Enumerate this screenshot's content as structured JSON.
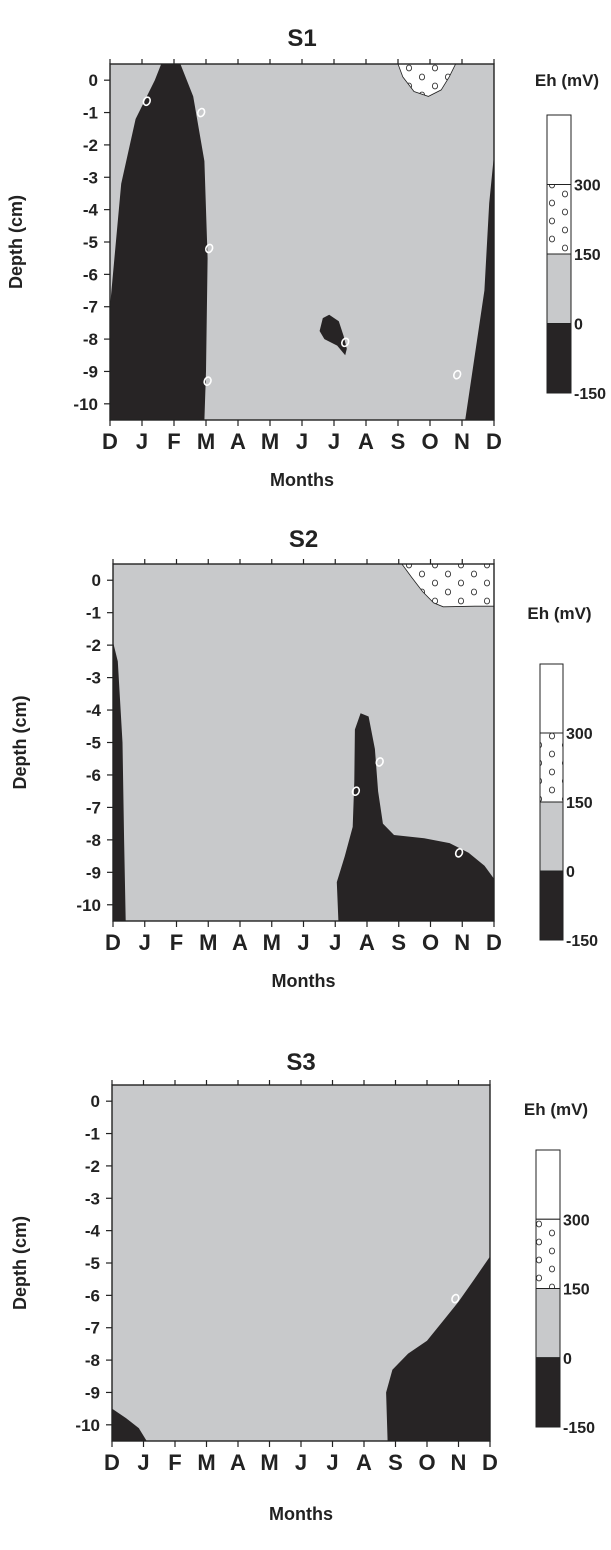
{
  "colors": {
    "anoxic": "#272425",
    "mid": "#c8c9cb",
    "high": "#ffffff",
    "frame": "#222222",
    "contour_label": "#ffffff"
  },
  "chart_data": [
    {
      "type": "contour",
      "title": "S1",
      "xlabel": "Months",
      "ylabel": "Depth  (cm)",
      "x_ticks": [
        "D",
        "J",
        "F",
        "M",
        "A",
        "M",
        "J",
        "J",
        "A",
        "S",
        "O",
        "N",
        "D"
      ],
      "y_ticks": [
        "0",
        "-1",
        "-2",
        "-3",
        "-4",
        "-5",
        "-6",
        "-7",
        "-8",
        "-9",
        "-10"
      ],
      "ylim": [
        -10.5,
        0.5
      ],
      "legend": {
        "title": "Eh  (mV)",
        "levels": [
          "300",
          "150",
          "0",
          "-150"
        ],
        "bands": [
          {
            "range": [
              300,
              450
            ],
            "fill": "white"
          },
          {
            "range": [
              150,
              300
            ],
            "fill": "dotted"
          },
          {
            "range": [
              0,
              150
            ],
            "fill": "gray"
          },
          {
            "range": [
              -150,
              0
            ],
            "fill": "dark"
          }
        ]
      },
      "regions": [
        {
          "eh_class": "-150 to 0",
          "fill": "dark",
          "polygon": [
            [
              0,
              -7
            ],
            [
              0.35,
              -3.2
            ],
            [
              0.8,
              -1.2
            ],
            [
              1.4,
              0
            ],
            [
              1.6,
              0.5
            ],
            [
              2.2,
              0.5
            ],
            [
              2.6,
              -0.5
            ],
            [
              2.95,
              -2.5
            ],
            [
              3.05,
              -5.5
            ],
            [
              3,
              -9
            ],
            [
              2.95,
              -10.5
            ],
            [
              0,
              -10.5
            ]
          ]
        },
        {
          "eh_class": "-150 to 0",
          "fill": "dark",
          "polygon": [
            [
              12,
              -2.3
            ],
            [
              11.85,
              -3.8
            ],
            [
              11.7,
              -6.5
            ],
            [
              11.4,
              -8.5
            ],
            [
              11.1,
              -10.5
            ],
            [
              12,
              -10.5
            ]
          ]
        },
        {
          "eh_class": "-150 to 0",
          "fill": "dark",
          "polygon": [
            [
              6.85,
              -7.25
            ],
            [
              6.65,
              -7.35
            ],
            [
              6.55,
              -7.75
            ],
            [
              6.7,
              -8.0
            ],
            [
              7.1,
              -8.2
            ],
            [
              7.35,
              -8.5
            ],
            [
              7.4,
              -8.3
            ],
            [
              7.3,
              -7.9
            ],
            [
              7.15,
              -7.45
            ]
          ]
        },
        {
          "eh_class": "150 to 300",
          "fill": "dotted",
          "polygon": [
            [
              9.0,
              0.5
            ],
            [
              9.15,
              0.1
            ],
            [
              9.5,
              -0.35
            ],
            [
              9.95,
              -0.5
            ],
            [
              10.35,
              -0.3
            ],
            [
              10.6,
              0.1
            ],
            [
              10.8,
              0.5
            ]
          ]
        }
      ],
      "contour_labels": [
        {
          "x": 1.15,
          "y": -0.65,
          "value": "0"
        },
        {
          "x": 2.85,
          "y": -1.0,
          "value": "0"
        },
        {
          "x": 3.1,
          "y": -5.2,
          "value": "0"
        },
        {
          "x": 3.05,
          "y": -9.3,
          "value": "0"
        },
        {
          "x": 7.35,
          "y": -8.1,
          "value": "0"
        },
        {
          "x": 10.85,
          "y": -9.1,
          "value": "0"
        }
      ]
    },
    {
      "type": "contour",
      "title": "S2",
      "xlabel": "Months",
      "ylabel": "Depth (cm)",
      "x_ticks": [
        "D",
        "J",
        "F",
        "M",
        "A",
        "M",
        "J",
        "J",
        "A",
        "S",
        "O",
        "N",
        "D"
      ],
      "y_ticks": [
        "0",
        "-1",
        "-2",
        "-3",
        "-4",
        "-5",
        "-6",
        "-7",
        "-8",
        "-9",
        "-10"
      ],
      "ylim": [
        -10.5,
        0.5
      ],
      "legend": {
        "title": "Eh (mV)",
        "levels": [
          "300",
          "150",
          "0",
          "-150"
        ],
        "bands": [
          {
            "range": [
              300,
              450
            ],
            "fill": "white"
          },
          {
            "range": [
              150,
              300
            ],
            "fill": "dotted"
          },
          {
            "range": [
              0,
              150
            ],
            "fill": "gray"
          },
          {
            "range": [
              -150,
              0
            ],
            "fill": "dark"
          }
        ]
      },
      "regions": [
        {
          "eh_class": "-150 to 0",
          "fill": "dark",
          "polygon": [
            [
              0,
              -1.9
            ],
            [
              0.15,
              -2.5
            ],
            [
              0.3,
              -5
            ],
            [
              0.35,
              -8
            ],
            [
              0.4,
              -10.5
            ],
            [
              0,
              -10.5
            ]
          ]
        },
        {
          "eh_class": "-150 to 0",
          "fill": "dark",
          "polygon": [
            [
              7.1,
              -10.5
            ],
            [
              7.05,
              -9.3
            ],
            [
              7.3,
              -8.5
            ],
            [
              7.55,
              -7.6
            ],
            [
              7.6,
              -6.2
            ],
            [
              7.62,
              -4.6
            ],
            [
              7.8,
              -4.1
            ],
            [
              8.05,
              -4.2
            ],
            [
              8.25,
              -5.2
            ],
            [
              8.35,
              -6.5
            ],
            [
              8.5,
              -7.5
            ],
            [
              8.85,
              -7.85
            ],
            [
              9.8,
              -7.95
            ],
            [
              10.6,
              -8.1
            ],
            [
              11.2,
              -8.4
            ],
            [
              11.7,
              -8.8
            ],
            [
              12,
              -9.2
            ],
            [
              12,
              -10.5
            ]
          ]
        },
        {
          "eh_class": "150 to 300",
          "fill": "dotted",
          "polygon": [
            [
              9.1,
              0.5
            ],
            [
              9.4,
              0.1
            ],
            [
              9.75,
              -0.35
            ],
            [
              10.1,
              -0.7
            ],
            [
              10.4,
              -0.82
            ],
            [
              11.4,
              -0.8
            ],
            [
              12,
              -0.8
            ],
            [
              12,
              0.5
            ]
          ]
        }
      ],
      "contour_labels": [
        {
          "x": 7.65,
          "y": -6.5,
          "value": "0"
        },
        {
          "x": 8.4,
          "y": -5.6,
          "value": "0"
        },
        {
          "x": 10.9,
          "y": -8.4,
          "value": "0"
        }
      ]
    },
    {
      "type": "contour",
      "title": "S3",
      "xlabel": "Months",
      "ylabel": "Depth (cm)",
      "x_ticks": [
        "D",
        "J",
        "F",
        "M",
        "A",
        "M",
        "J",
        "J",
        "A",
        "S",
        "O",
        "N",
        "D"
      ],
      "y_ticks": [
        "0",
        "-1",
        "-2",
        "-3",
        "-4",
        "-5",
        "-6",
        "-7",
        "-8",
        "-9",
        "-10"
      ],
      "ylim": [
        -10.5,
        0.5
      ],
      "legend": {
        "title": "Eh  (mV)",
        "levels": [
          "300",
          "150",
          "0",
          "-150"
        ],
        "bands": [
          {
            "range": [
              300,
              450
            ],
            "fill": "white"
          },
          {
            "range": [
              150,
              300
            ],
            "fill": "dotted"
          },
          {
            "range": [
              0,
              150
            ],
            "fill": "gray"
          },
          {
            "range": [
              -150,
              0
            ],
            "fill": "dark"
          }
        ]
      },
      "regions": [
        {
          "eh_class": "-150 to 0",
          "fill": "dark",
          "polygon": [
            [
              0,
              -9.5
            ],
            [
              0.45,
              -9.8
            ],
            [
              0.85,
              -10.1
            ],
            [
              1.1,
              -10.5
            ],
            [
              0,
              -10.5
            ]
          ]
        },
        {
          "eh_class": "-150 to 0",
          "fill": "dark",
          "polygon": [
            [
              8.75,
              -10.5
            ],
            [
              8.7,
              -9
            ],
            [
              8.9,
              -8.3
            ],
            [
              9.4,
              -7.8
            ],
            [
              10,
              -7.4
            ],
            [
              10.5,
              -6.8
            ],
            [
              11,
              -6.2
            ],
            [
              11.5,
              -5.5
            ],
            [
              12,
              -4.8
            ],
            [
              12,
              -10.5
            ]
          ]
        }
      ],
      "contour_labels": [
        {
          "x": 10.9,
          "y": -6.1,
          "value": "0"
        }
      ]
    }
  ]
}
